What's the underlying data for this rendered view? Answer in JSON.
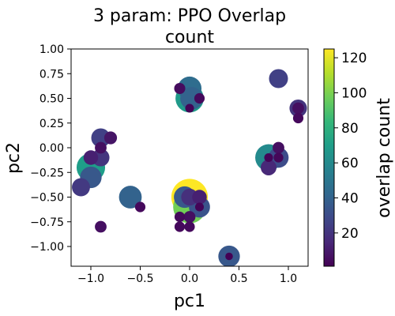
{
  "chart_data": {
    "type": "scatter",
    "title": "3 param: PPO Overlap count",
    "title_lines": [
      "3 param: PPO Overlap",
      "count"
    ],
    "xlabel": "pc1",
    "ylabel": "pc2",
    "xlim": [
      -1.2,
      1.2
    ],
    "ylim": [
      -1.2,
      1.0
    ],
    "xticks": [
      -1.0,
      -0.5,
      0.0,
      0.5,
      1.0
    ],
    "xtick_labels": [
      "−1.0",
      "−0.5",
      "0.0",
      "0.5",
      "1.0"
    ],
    "yticks": [
      1.0,
      0.75,
      0.5,
      0.25,
      0.0,
      -0.25,
      -0.5,
      -0.75,
      -1.0
    ],
    "ytick_labels": [
      "1.00",
      "0.75",
      "0.50",
      "0.25",
      "0.00",
      "−0.25",
      "−0.50",
      "−0.75",
      "−1.00"
    ],
    "grid": false,
    "colorbar": {
      "label": "overlap count",
      "range": [
        1,
        125
      ],
      "ticks": [
        20,
        40,
        60,
        80,
        100,
        120
      ],
      "tick_labels": [
        "20",
        "40",
        "60",
        "80",
        "100",
        "120"
      ],
      "colormap": [
        "#440154",
        "#482878",
        "#3e4989",
        "#31688e",
        "#26828e",
        "#1f9e89",
        "#35b779",
        "#6ece58",
        "#b5de2b",
        "#fde725"
      ]
    },
    "points": [
      {
        "x": 0.0,
        "y": -0.5,
        "count": 125
      },
      {
        "x": 0.0,
        "y": -0.6,
        "count": 98
      },
      {
        "x": 0.0,
        "y": 0.5,
        "count": 68
      },
      {
        "x": 0.0,
        "y": 0.6,
        "count": 45
      },
      {
        "x": 0.02,
        "y": 0.5,
        "count": 40
      },
      {
        "x": -0.1,
        "y": 0.6,
        "count": 5
      },
      {
        "x": 0.1,
        "y": 0.5,
        "count": 4
      },
      {
        "x": 0.0,
        "y": 0.4,
        "count": 2
      },
      {
        "x": -1.0,
        "y": -0.2,
        "count": 70
      },
      {
        "x": -1.0,
        "y": -0.3,
        "count": 35
      },
      {
        "x": -1.1,
        "y": -0.4,
        "count": 22
      },
      {
        "x": -0.9,
        "y": 0.1,
        "count": 25
      },
      {
        "x": -0.9,
        "y": -0.1,
        "count": 20
      },
      {
        "x": -1.0,
        "y": -0.1,
        "count": 12
      },
      {
        "x": -0.8,
        "y": 0.1,
        "count": 8
      },
      {
        "x": -0.9,
        "y": 0.0,
        "count": 6
      },
      {
        "x": -0.9,
        "y": -0.8,
        "count": 6
      },
      {
        "x": -0.6,
        "y": -0.5,
        "count": 40
      },
      {
        "x": -0.5,
        "y": -0.6,
        "count": 4
      },
      {
        "x": -0.05,
        "y": -0.5,
        "count": 35
      },
      {
        "x": 0.1,
        "y": -0.6,
        "count": 33
      },
      {
        "x": 0.0,
        "y": -0.5,
        "count": 18
      },
      {
        "x": 0.1,
        "y": -0.5,
        "count": 12
      },
      {
        "x": -0.1,
        "y": -0.7,
        "count": 4
      },
      {
        "x": 0.0,
        "y": -0.7,
        "count": 6
      },
      {
        "x": -0.1,
        "y": -0.8,
        "count": 4
      },
      {
        "x": 0.0,
        "y": -0.8,
        "count": 4
      },
      {
        "x": 0.1,
        "y": -0.6,
        "count": 2
      },
      {
        "x": 0.4,
        "y": -1.1,
        "count": 35
      },
      {
        "x": 0.4,
        "y": -1.1,
        "count": 1
      },
      {
        "x": 0.8,
        "y": -0.1,
        "count": 60
      },
      {
        "x": 0.9,
        "y": -0.1,
        "count": 30
      },
      {
        "x": 0.8,
        "y": -0.2,
        "count": 15
      },
      {
        "x": 0.9,
        "y": 0.0,
        "count": 6
      },
      {
        "x": 0.8,
        "y": -0.1,
        "count": 2
      },
      {
        "x": 0.9,
        "y": -0.1,
        "count": 3
      },
      {
        "x": 0.9,
        "y": 0.7,
        "count": 25
      },
      {
        "x": 1.1,
        "y": 0.4,
        "count": 20
      },
      {
        "x": 1.1,
        "y": 0.4,
        "count": 6
      },
      {
        "x": 1.1,
        "y": 0.3,
        "count": 4
      }
    ]
  }
}
